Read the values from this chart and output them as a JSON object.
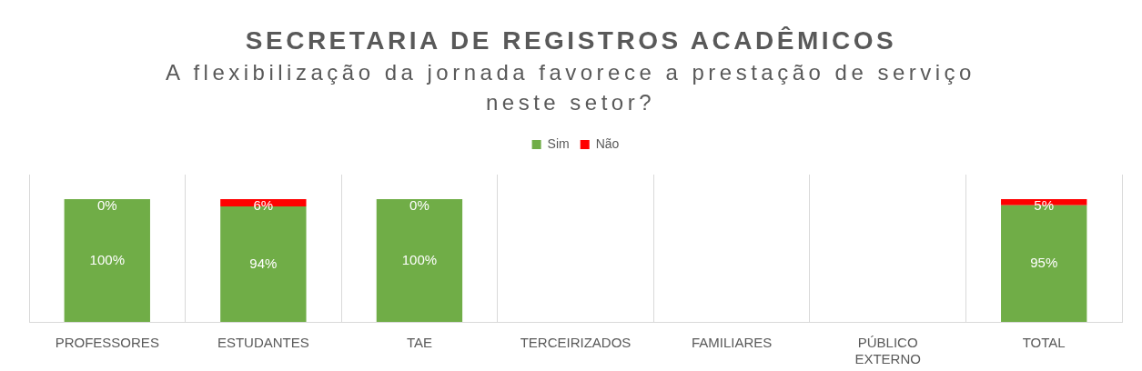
{
  "chart_data": {
    "type": "bar",
    "title": "SECRETARIA DE REGISTROS ACADÊMICOS",
    "subtitle": "A flexibilização da jornada favorece a prestação de serviço neste setor?",
    "categories": [
      "PROFESSORES",
      "ESTUDANTES",
      "TAE",
      "TERCEIRIZADOS",
      "FAMILIARES",
      "PÚBLICO EXTERNO",
      "TOTAL"
    ],
    "series": [
      {
        "name": "Sim",
        "color": "#70ad47",
        "values": [
          100,
          94,
          100,
          0,
          0,
          0,
          95
        ],
        "value_labels": [
          "100%",
          "94%",
          "100%",
          null,
          null,
          null,
          "95%"
        ]
      },
      {
        "name": "Não",
        "color": "#ff0000",
        "values": [
          0,
          6,
          0,
          0,
          0,
          0,
          5
        ],
        "value_labels": [
          "0%",
          "6%",
          "0%",
          null,
          null,
          null,
          "5%"
        ]
      }
    ],
    "stacked": true,
    "grid": "x",
    "legend": "top",
    "tick_labels": "x"
  }
}
